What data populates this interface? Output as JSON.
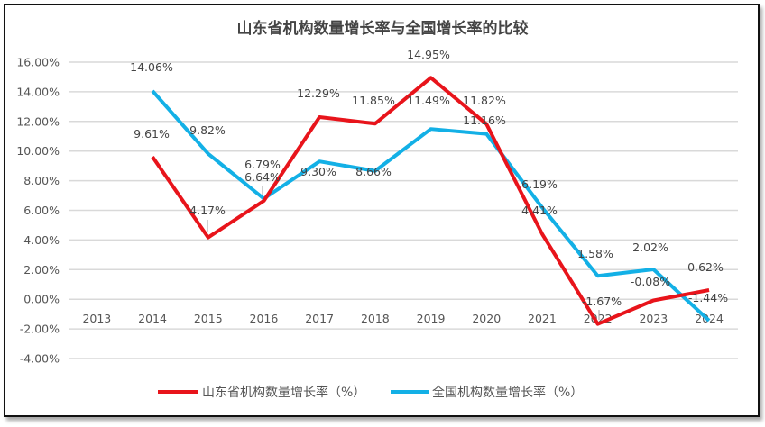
{
  "chart_data": {
    "type": "line",
    "title": "山东省机构数量增长率与全国增长率的比较",
    "categories": [
      "2013",
      "2014",
      "2015",
      "2016",
      "2017",
      "2018",
      "2019",
      "2020",
      "2021",
      "2022",
      "2023",
      "2024"
    ],
    "ylim": [
      -4,
      16
    ],
    "yticks": [
      "-4.00%",
      "-2.00%",
      "0.00%",
      "2.00%",
      "4.00%",
      "6.00%",
      "8.00%",
      "10.00%",
      "12.00%",
      "14.00%",
      "16.00%"
    ],
    "grid": true,
    "legend_position": "bottom",
    "series": [
      {
        "name": "山东省机构数量增长率（%）",
        "color": "#e8141b",
        "values": [
          null,
          9.61,
          4.17,
          6.64,
          12.29,
          11.85,
          14.95,
          11.82,
          4.41,
          -1.67,
          -0.08,
          0.62
        ],
        "labels": [
          "",
          "9.61%",
          "4.17%",
          "6.64%",
          "12.29%",
          "11.85%",
          "14.95%",
          "11.82%",
          "4.41%",
          "-1.67%",
          "-0.08%",
          "0.62%"
        ]
      },
      {
        "name": "全国机构数量增长率（%）",
        "color": "#13b0e6",
        "values": [
          null,
          14.06,
          9.82,
          6.79,
          9.3,
          8.66,
          11.49,
          11.16,
          6.19,
          1.58,
          2.02,
          -1.44
        ],
        "labels": [
          "",
          "14.06%",
          "9.82%",
          "6.79%",
          "9.30%",
          "8.66%",
          "11.49%",
          "11.16%",
          "6.19%",
          "1.58%",
          "2.02%",
          "-1.44%"
        ]
      }
    ]
  }
}
